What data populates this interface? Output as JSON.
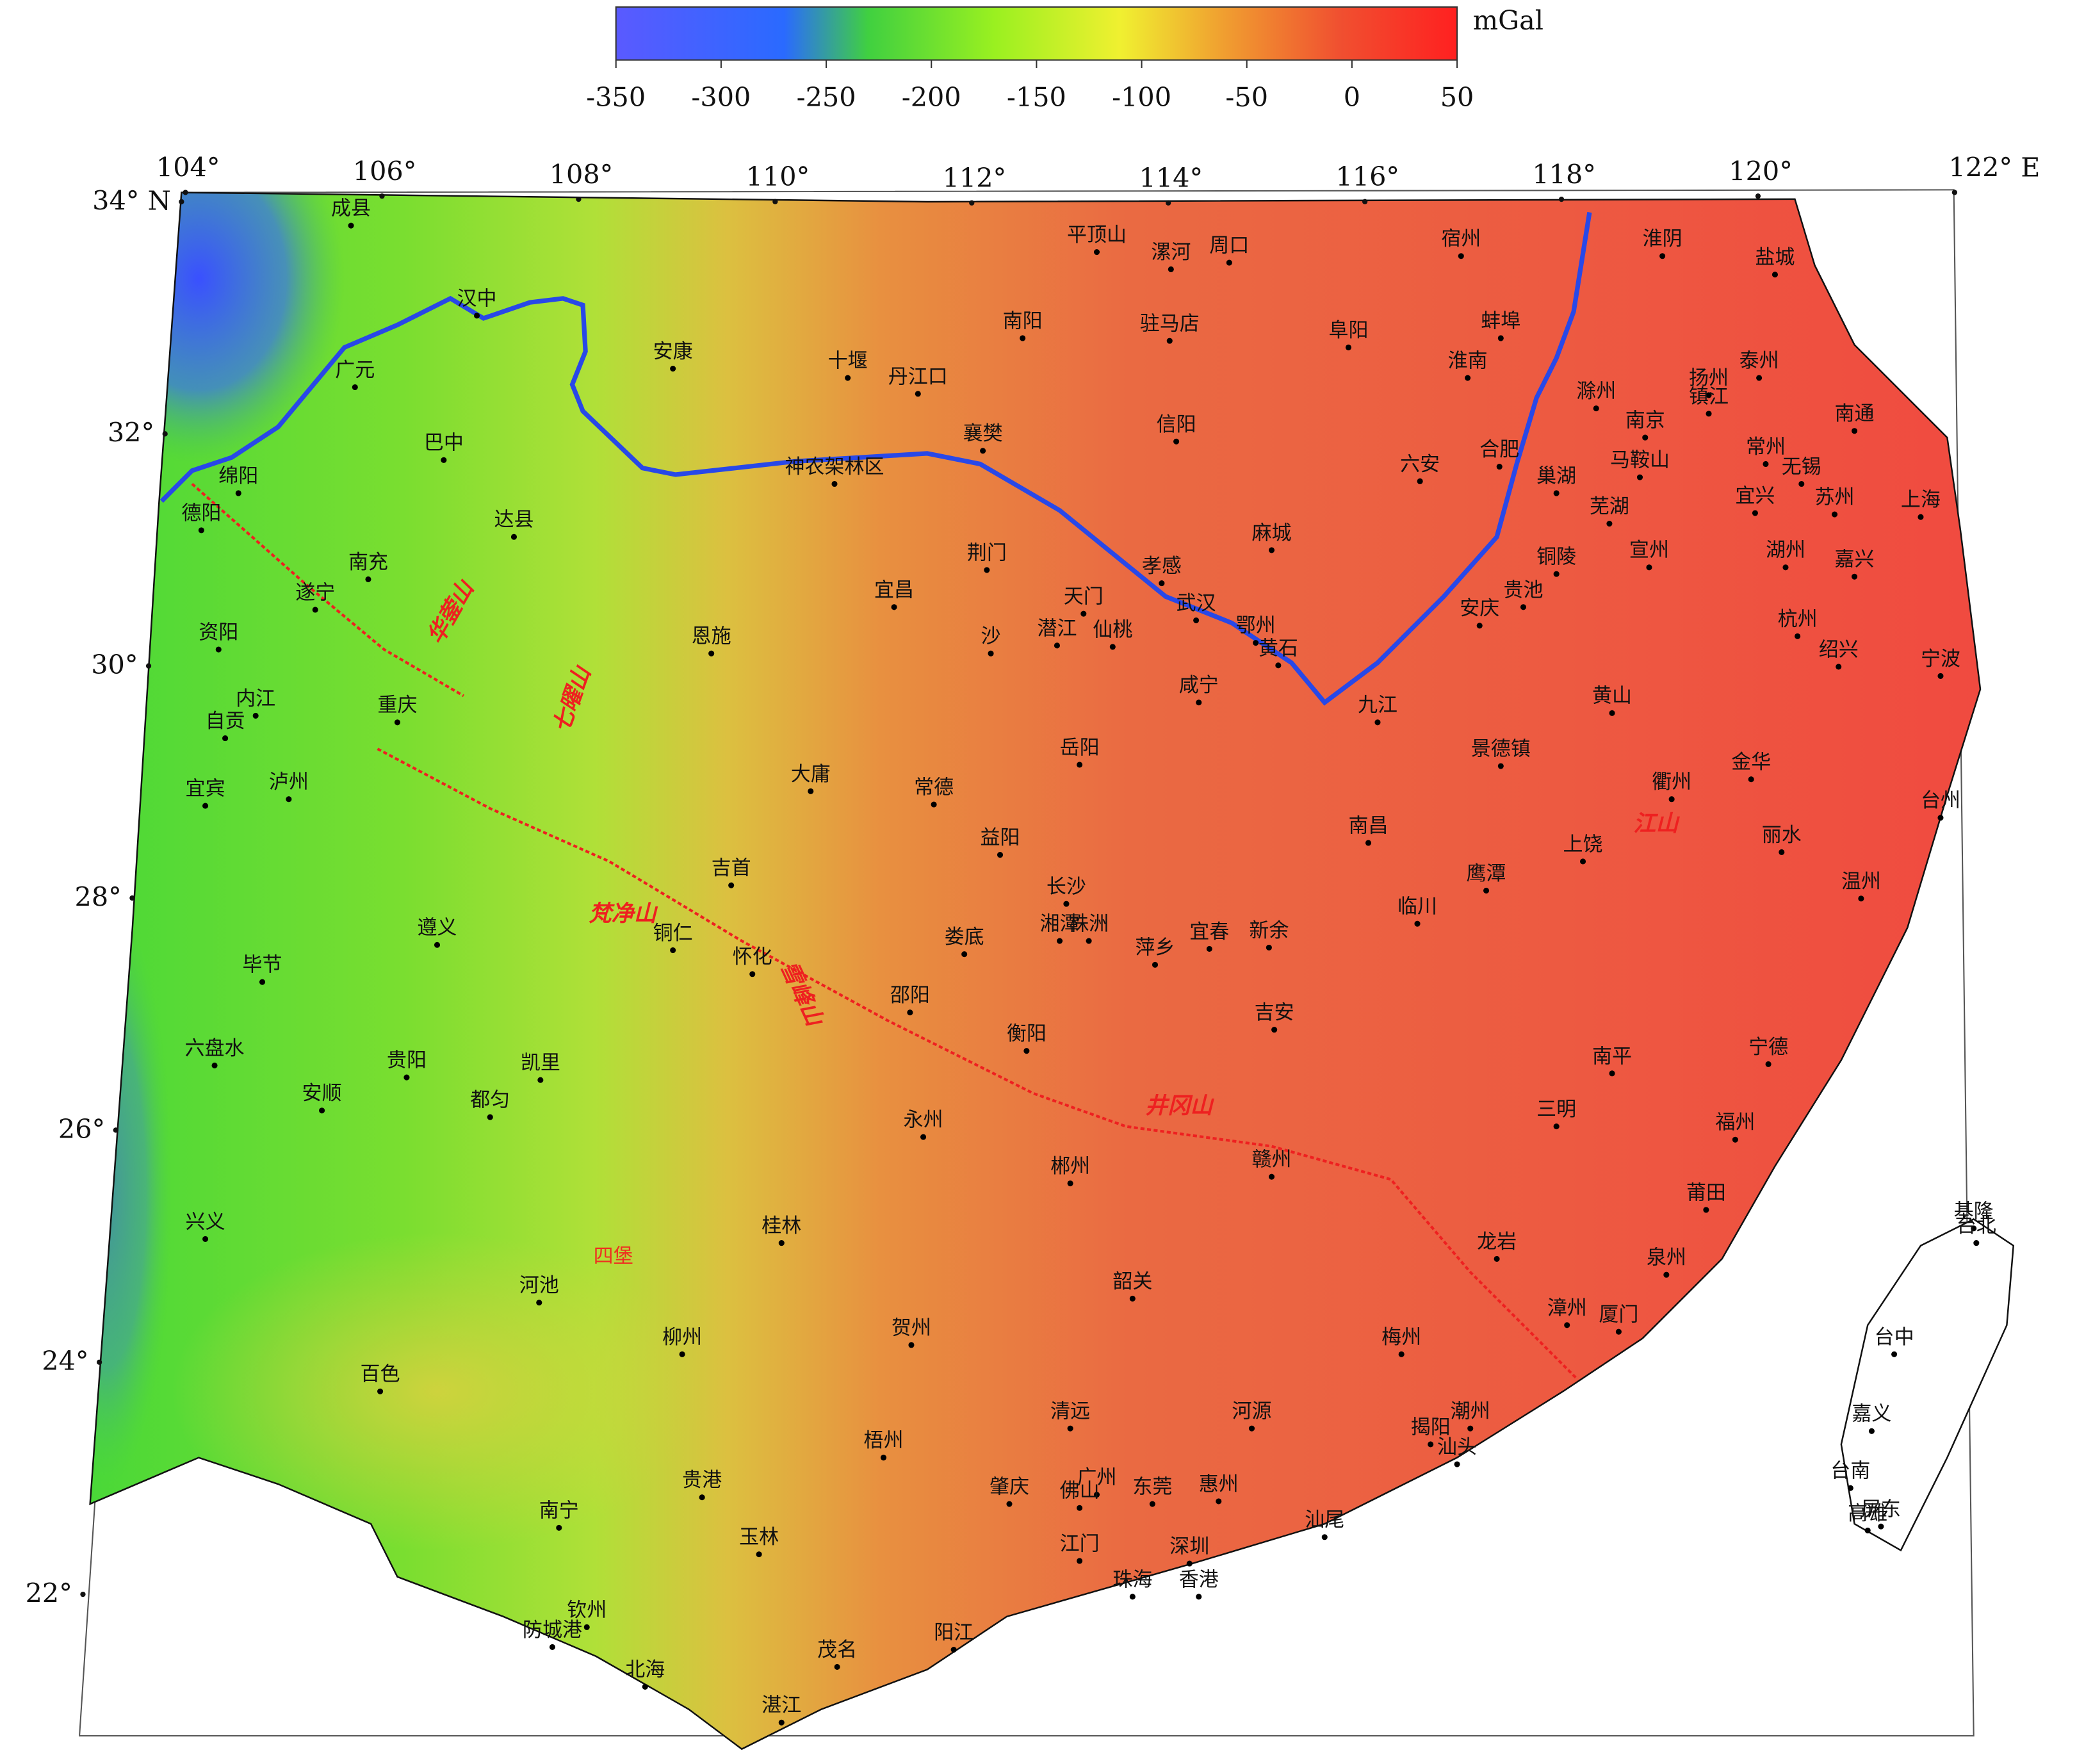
{
  "colorbar": {
    "unit": "mGal",
    "ticks": [
      -350,
      -300,
      -250,
      -200,
      -150,
      -100,
      -50,
      0,
      50
    ]
  },
  "axes": {
    "longitude_ticks": [
      {
        "value": 104,
        "label": "104°"
      },
      {
        "value": 106,
        "label": "106°"
      },
      {
        "value": 108,
        "label": "108°"
      },
      {
        "value": 110,
        "label": "110°"
      },
      {
        "value": 112,
        "label": "112°"
      },
      {
        "value": 114,
        "label": "114°"
      },
      {
        "value": 116,
        "label": "116°"
      },
      {
        "value": 118,
        "label": "118°"
      },
      {
        "value": 120,
        "label": "120°"
      },
      {
        "value": 122,
        "label": "122° E"
      }
    ],
    "latitude_ticks": [
      {
        "value": 34,
        "label": "34° N"
      },
      {
        "value": 32,
        "label": "32°"
      },
      {
        "value": 30,
        "label": "30°"
      },
      {
        "value": 28,
        "label": "28°"
      },
      {
        "value": 26,
        "label": "26°"
      },
      {
        "value": 24,
        "label": "24°"
      },
      {
        "value": 22,
        "label": "22°"
      }
    ]
  },
  "cities": [
    "成县",
    "汉中",
    "广元",
    "安康",
    "十堰",
    "丹江口",
    "南阳",
    "平顶山",
    "漯河",
    "周口",
    "驻马店",
    "宿州",
    "淮阴",
    "盐城",
    "阜阳",
    "蚌埠",
    "淮南",
    "滁州",
    "扬州",
    "泰州",
    "镇江",
    "南京",
    "南通",
    "巴中",
    "绵阳",
    "德阳",
    "神农架林区",
    "襄樊",
    "信阳",
    "六安",
    "合肥",
    "马鞍山",
    "常州",
    "无锡",
    "巢湖",
    "宜兴",
    "苏州",
    "上海",
    "芜湖",
    "达县",
    "麻城",
    "铜陵",
    "宣州",
    "湖州",
    "嘉兴",
    "南充",
    "荆门",
    "孝感",
    "贵池",
    "宜昌",
    "天门",
    "武汉",
    "遂宁",
    "潜江",
    "仙桃",
    "沙",
    "鄂州",
    "黄石",
    "安庆",
    "杭州",
    "绍兴",
    "宁波",
    "资阳",
    "恩施",
    "咸宁",
    "九江",
    "黄山",
    "内江",
    "重庆",
    "自贡",
    "岳阳",
    "景德镇",
    "金华",
    "宜宾",
    "泸州",
    "大庸",
    "常德",
    "衢州",
    "台州",
    "益阳",
    "南昌",
    "上饶",
    "丽水",
    "吉首",
    "长沙",
    "鹰潭",
    "温州",
    "湘潭",
    "株洲",
    "临川",
    "遵义",
    "娄底",
    "宜春",
    "新余",
    "萍乡",
    "铜仁",
    "怀化",
    "毕节",
    "邵阳",
    "吉安",
    "衡阳",
    "六盘水",
    "贵阳",
    "凯里",
    "南平",
    "宁德",
    "安顺",
    "都匀",
    "三明",
    "永州",
    "福州",
    "赣州",
    "郴州",
    "莆田",
    "兴义",
    "桂林",
    "龙岩",
    "泉州",
    "基隆",
    "台北",
    "韶关",
    "河池",
    "贺州",
    "漳州",
    "厦门",
    "梅州",
    "柳州",
    "台中",
    "百色",
    "清远",
    "河源",
    "潮州",
    "嘉义",
    "揭阳",
    "汕头",
    "梧州",
    "台南",
    "贵港",
    "肇庆",
    "广州",
    "佛山",
    "东莞",
    "惠州",
    "屏东",
    "高雄",
    "南宁",
    "汕尾",
    "玉林",
    "江门",
    "深圳",
    "珠海",
    "香港",
    "钦州",
    "防城港",
    "北海",
    "茂名",
    "阳江",
    "湛江"
  ],
  "mountains": [
    "华蓥山",
    "七曜山",
    "梵净山",
    "雪峰山",
    "井冈山",
    "江山"
  ],
  "annotations": [
    "四堡"
  ]
}
